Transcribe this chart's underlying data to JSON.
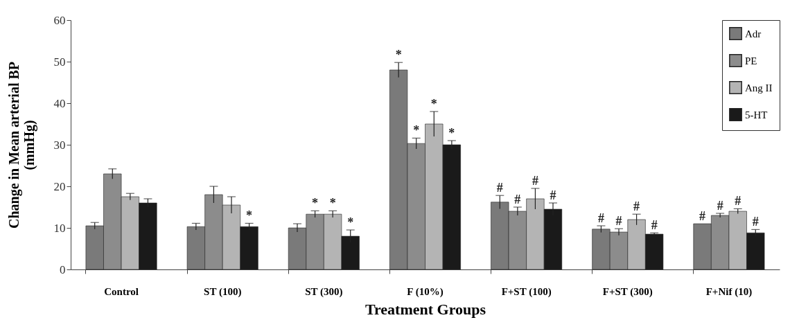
{
  "chart_data": {
    "type": "bar",
    "xlabel": "Treatment Groups",
    "ylabel": "Change in Mean arterial BP\n(mmHg)",
    "categories": [
      "Control",
      "ST (100)",
      "ST (300)",
      "F (10%)",
      "F+ST (100)",
      "F+ST (300)",
      "F+Nif (10)"
    ],
    "series": [
      {
        "name": "Adr",
        "color": "#7a7a7a",
        "values": [
          10.5,
          10.3,
          10,
          48,
          16.2,
          9.7,
          11
        ],
        "errors": [
          0.8,
          0.8,
          1,
          1.8,
          1.6,
          0.8,
          null
        ],
        "value_labels": [
          null,
          null,
          null,
          "*",
          "#",
          "#",
          "#"
        ]
      },
      {
        "name": "PE",
        "color": "#8c8c8c",
        "values": [
          23,
          18,
          13.3,
          30.3,
          14,
          9,
          13
        ],
        "errors": [
          1.2,
          2,
          0.8,
          1.3,
          1,
          0.8,
          0.5
        ],
        "value_labels": [
          null,
          null,
          "*",
          "*",
          "#",
          "#",
          "#"
        ]
      },
      {
        "name": "Ang II",
        "color": "#b4b4b4",
        "values": [
          17.5,
          15.5,
          13.3,
          35,
          17,
          12,
          14
        ],
        "errors": [
          0.8,
          2,
          0.8,
          3,
          2.5,
          1.3,
          0.6
        ],
        "value_labels": [
          null,
          null,
          "*",
          "*",
          "#",
          "#",
          "#"
        ]
      },
      {
        "name": "5-HT",
        "color": "#1a1a1a",
        "values": [
          16,
          10.3,
          8,
          30,
          14.5,
          8.5,
          8.8
        ],
        "errors": [
          1,
          0.8,
          1.5,
          1,
          1.5,
          0.3,
          0.8
        ],
        "value_labels": [
          null,
          "*",
          "*",
          "*",
          "#",
          "#",
          "#"
        ]
      }
    ],
    "ylim": [
      0,
      60
    ],
    "yticks": [
      0,
      10,
      20,
      30,
      40,
      50,
      60
    ],
    "grid": false,
    "legend": "top right"
  }
}
